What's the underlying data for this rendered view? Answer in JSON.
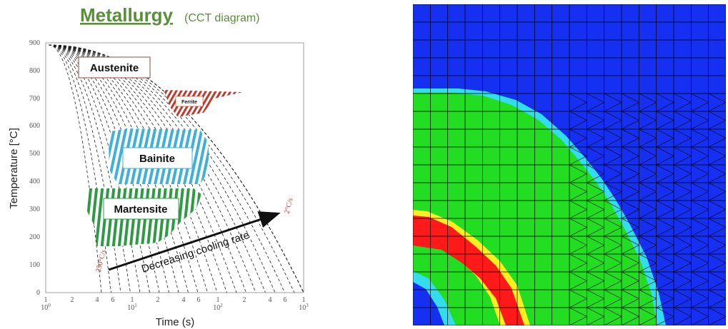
{
  "title": "Metallurgy",
  "subtitle": "(CCT diagram)",
  "cct": {
    "ylabel": "Temperature [°C]",
    "xlabel": "Time (s)",
    "yticks": [
      "900",
      "800",
      "700",
      "600",
      "500",
      "400",
      "300",
      "200",
      "100",
      "0"
    ],
    "phases": {
      "austenite": "Austenite",
      "ferrite": "Ferrite",
      "bainite": "Bainite",
      "martensite": "Martensite"
    },
    "rate_high": "250°C/s",
    "rate_low": "2°C/s",
    "arrow_text": "Decreasing cooling rate"
  },
  "colors": {
    "title": "#5a8f3a",
    "ferrite": "#c0392b",
    "bainite": "#3fb0d8",
    "martensite": "#2e9b44",
    "austenite_border": "#8b4a3a",
    "sim_background": "#1530f0",
    "sim_green": "#22dd22",
    "sim_red": "#ff1a1a",
    "sim_cyan": "#33ddee"
  }
}
